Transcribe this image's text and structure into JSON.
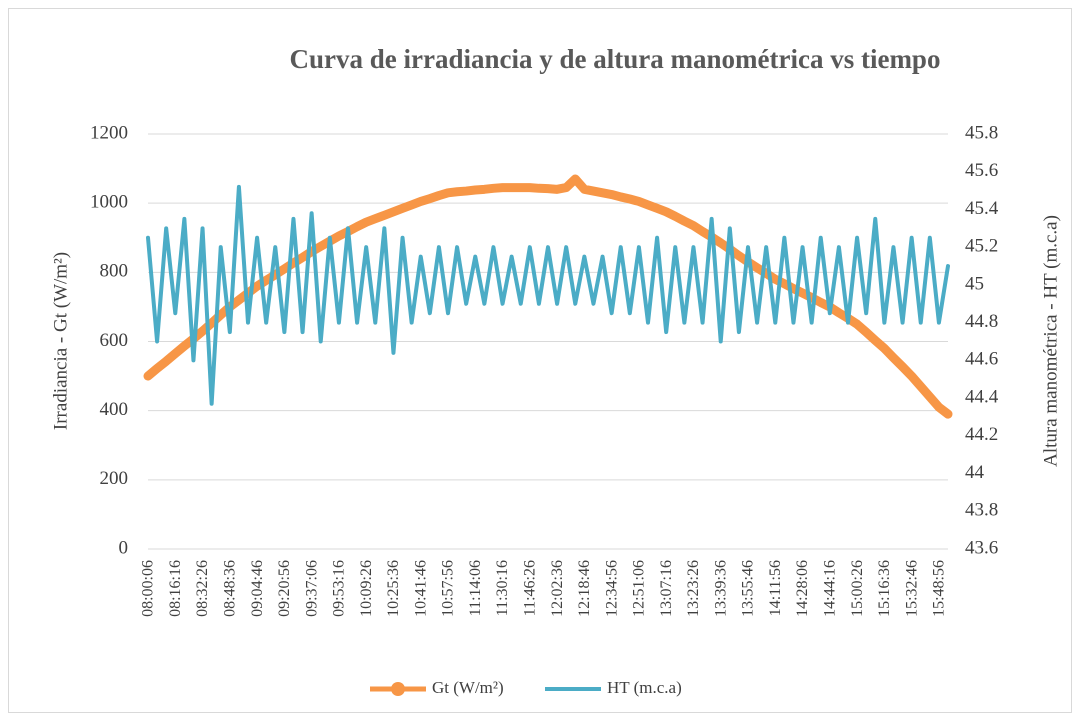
{
  "chart_data": {
    "type": "line",
    "title": "Curva de irradiancia y de altura manométrica vs tiempo",
    "ylabel": "Irradiancia - Gt (W/m²)",
    "y2label": "Altura manométrica - HT (m.c.a)",
    "categories": [
      "08:00:06",
      null,
      null,
      "08:16:16",
      null,
      null,
      "08:32:26",
      null,
      null,
      "08:48:36",
      null,
      null,
      "09:04:46",
      null,
      null,
      "09:20:56",
      null,
      null,
      "09:37:06",
      null,
      null,
      "09:53:16",
      null,
      null,
      "10:09:26",
      null,
      null,
      "10:25:36",
      null,
      null,
      "10:41:46",
      null,
      null,
      "10:57:56",
      null,
      null,
      "11:14:06",
      null,
      null,
      "11:30:16",
      null,
      null,
      "11:46:26",
      null,
      null,
      "12:02:36",
      null,
      null,
      "12:18:46",
      null,
      null,
      "12:34:56",
      null,
      null,
      "12:51:06",
      null,
      null,
      "13:07:16",
      null,
      null,
      "13:23:26",
      null,
      null,
      "13:39:36",
      null,
      null,
      "13:55:46",
      null,
      null,
      "14:11:56",
      null,
      null,
      "14:28:06",
      null,
      null,
      "14:44:16",
      null,
      null,
      "15:00:26",
      null,
      null,
      "15:16:36",
      null,
      null,
      "15:32:46",
      null,
      null,
      "15:48:56",
      null
    ],
    "series": [
      {
        "name": "Gt (W/m²)",
        "color": "#f79646",
        "values": [
          500,
          522,
          543,
          565,
          587,
          608,
          630,
          653,
          677,
          700,
          720,
          740,
          760,
          777,
          793,
          810,
          827,
          843,
          860,
          875,
          890,
          905,
          918,
          932,
          945,
          955,
          965,
          975,
          985,
          995,
          1005,
          1013,
          1022,
          1030,
          1033,
          1035,
          1038,
          1040,
          1043,
          1045,
          1045,
          1045,
          1045,
          1043,
          1042,
          1040,
          1045,
          1070,
          1040,
          1035,
          1030,
          1025,
          1018,
          1012,
          1005,
          995,
          985,
          975,
          962,
          948,
          935,
          918,
          902,
          885,
          867,
          848,
          830,
          813,
          797,
          780,
          767,
          753,
          740,
          727,
          713,
          700,
          683,
          667,
          650,
          627,
          603,
          580,
          553,
          527,
          500,
          470,
          440,
          410,
          390
        ]
      },
      {
        "name": "HT (m.c.a)",
        "color": "#4bacc6",
        "axis": "y2",
        "values": [
          45.25,
          44.7,
          45.3,
          44.85,
          45.35,
          44.6,
          45.3,
          44.37,
          45.2,
          44.75,
          45.52,
          44.8,
          45.25,
          44.8,
          45.2,
          44.75,
          45.35,
          44.75,
          45.38,
          44.7,
          45.25,
          44.8,
          45.3,
          44.8,
          45.2,
          44.8,
          45.3,
          44.64,
          45.25,
          44.8,
          45.15,
          44.85,
          45.2,
          44.85,
          45.2,
          44.9,
          45.15,
          44.9,
          45.2,
          44.9,
          45.15,
          44.9,
          45.2,
          44.9,
          45.2,
          44.9,
          45.2,
          44.9,
          45.15,
          44.9,
          45.15,
          44.85,
          45.2,
          44.85,
          45.2,
          44.8,
          45.25,
          44.75,
          45.2,
          44.8,
          45.2,
          44.8,
          45.35,
          44.7,
          45.3,
          44.75,
          45.2,
          44.8,
          45.2,
          44.8,
          45.25,
          44.8,
          45.2,
          44.8,
          45.25,
          44.85,
          45.2,
          44.8,
          45.25,
          44.85,
          45.35,
          44.8,
          45.2,
          44.8,
          45.25,
          44.8,
          45.25,
          44.8,
          45.1
        ]
      }
    ],
    "ylim": [
      0,
      1200
    ],
    "yticks": [
      0,
      200,
      400,
      600,
      800,
      1000,
      1200
    ],
    "y2lim": [
      43.6,
      45.8
    ],
    "y2ticks": [
      43.6,
      43.8,
      44,
      44.2,
      44.4,
      44.6,
      44.8,
      45,
      45.2,
      45.4,
      45.6,
      45.8
    ],
    "grid": true,
    "legend": "bottom"
  }
}
